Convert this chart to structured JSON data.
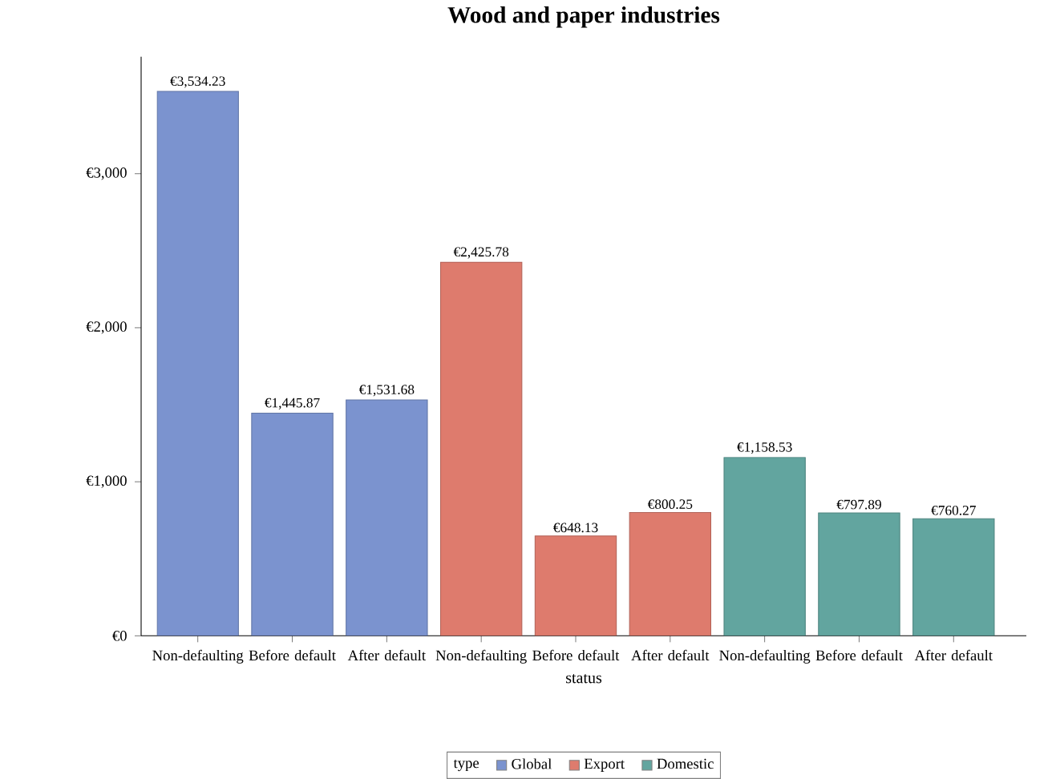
{
  "chart_data": {
    "type": "bar",
    "title": "Wood and paper industries",
    "xlabel": "status",
    "legend_title": "type",
    "categories": [
      "Non-defaulting",
      "Before default",
      "After default",
      "Non-defaulting",
      "Before default",
      "After default",
      "Non-defaulting",
      "Before default",
      "After default"
    ],
    "series": [
      {
        "name": "Global",
        "color": "#7b93cf",
        "values": [
          3534.23,
          1445.87,
          1531.68,
          null,
          null,
          null,
          null,
          null,
          null
        ],
        "value_labels": [
          "€3,534.23",
          "€1,445.87",
          "€1,531.68",
          null,
          null,
          null,
          null,
          null,
          null
        ]
      },
      {
        "name": "Export",
        "color": "#de7b6d",
        "values": [
          null,
          null,
          null,
          2425.78,
          648.13,
          800.25,
          null,
          null,
          null
        ],
        "value_labels": [
          null,
          null,
          null,
          "€2,425.78",
          "€648.13",
          "€800.25",
          null,
          null,
          null
        ]
      },
      {
        "name": "Domestic",
        "color": "#62a59f",
        "values": [
          null,
          null,
          null,
          null,
          null,
          null,
          1158.53,
          797.89,
          760.27
        ],
        "value_labels": [
          null,
          null,
          null,
          null,
          null,
          null,
          "€1,158.53",
          "€797.89",
          "€760.27"
        ]
      }
    ],
    "ylim": [
      0,
      3760
    ],
    "yticks": [
      {
        "value": 0,
        "label": "€0"
      },
      {
        "value": 1000,
        "label": "€1,000"
      },
      {
        "value": 2000,
        "label": "€2,000"
      },
      {
        "value": 3000,
        "label": "€3,000"
      }
    ],
    "grid": false,
    "legend": "bottom"
  }
}
